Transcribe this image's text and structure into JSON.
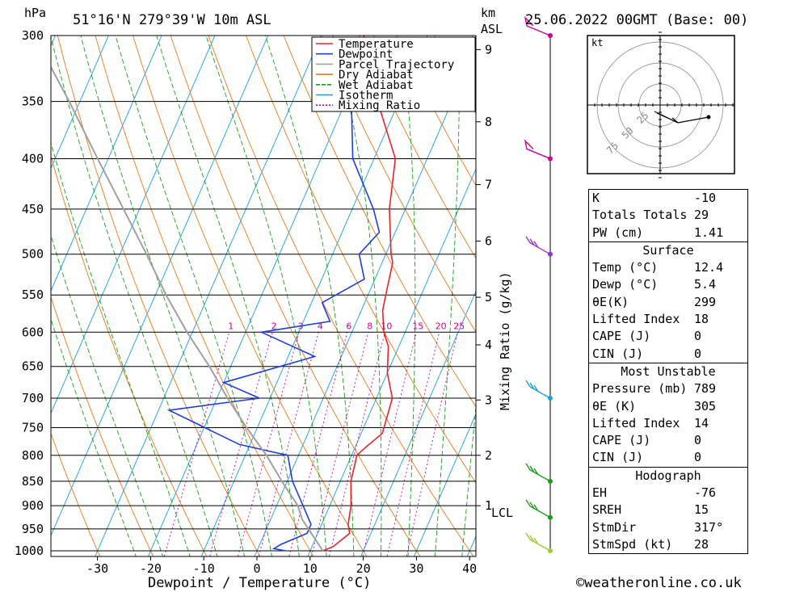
{
  "header": {
    "unit_left": "hPa",
    "location": "51°16'N  279°39'W  10m  ASL",
    "unit_right_top": "km",
    "unit_right_bottom": "ASL",
    "datetime": "25.06.2022  00GMT  (Base: 00)"
  },
  "footer": {
    "xlabel": "Dewpoint / Temperature (°C)",
    "credit": "©weatheronline.co.uk",
    "mixing_label": "Mixing Ratio (g/kg)"
  },
  "legend": [
    {
      "label": "Temperature",
      "color": "#e8232a"
    },
    {
      "label": "Dewpoint",
      "color": "#1f3fd6"
    },
    {
      "label": "Parcel Trajectory",
      "color": "#a0a0a0"
    },
    {
      "label": "Dry Adiabat",
      "color": "#e87a1a"
    },
    {
      "label": "Wet Adiabat",
      "color": "#1a9e1a"
    },
    {
      "label": "Isotherm",
      "color": "#1a9ee0"
    },
    {
      "label": "Mixing Ratio",
      "color": "#cc0099"
    }
  ],
  "chart_data": {
    "type": "line",
    "x_axis": {
      "label": "Dewpoint / Temperature (°C)",
      "ticks": [
        "-30",
        "-20",
        "-10",
        "0",
        "10",
        "20",
        "30",
        "40"
      ]
    },
    "y_axis": {
      "label": "hPa",
      "scale": "log",
      "ticks": [
        "300",
        "350",
        "400",
        "450",
        "500",
        "550",
        "600",
        "650",
        "700",
        "750",
        "800",
        "850",
        "900",
        "950",
        "1000"
      ]
    },
    "km_ticks": [
      {
        "label": "9",
        "p": 310
      },
      {
        "label": "8",
        "p": 367
      },
      {
        "label": "7",
        "p": 425
      },
      {
        "label": "6",
        "p": 485
      },
      {
        "label": "5",
        "p": 553
      },
      {
        "label": "4",
        "p": 618
      },
      {
        "label": "3",
        "p": 703
      },
      {
        "label": "2",
        "p": 800
      },
      {
        "label": "1",
        "p": 900
      }
    ],
    "lcl_label": "LCL",
    "mixing_ratio_labels": [
      "1",
      "2",
      "3",
      "4",
      "6",
      "8",
      "10",
      "15",
      "20",
      "25"
    ],
    "series": [
      {
        "name": "Temperature",
        "points": [
          [
            12.4,
            1000
          ],
          [
            14,
            990
          ],
          [
            16,
            960
          ],
          [
            15,
            940
          ],
          [
            14,
            900
          ],
          [
            12,
            850
          ],
          [
            11,
            800
          ],
          [
            12,
            785
          ],
          [
            14,
            760
          ],
          [
            13,
            700
          ],
          [
            10,
            660
          ],
          [
            8,
            620
          ],
          [
            6,
            600
          ],
          [
            4,
            570
          ],
          [
            3,
            540
          ],
          [
            2,
            510
          ],
          [
            1,
            500
          ],
          [
            -3,
            450
          ],
          [
            -6,
            400
          ],
          [
            -14,
            350
          ],
          [
            -22,
            300
          ]
        ]
      },
      {
        "name": "Dewpoint",
        "points": [
          [
            5.4,
            1000
          ],
          [
            3,
            995
          ],
          [
            4,
            985
          ],
          [
            8,
            960
          ],
          [
            8,
            940
          ],
          [
            5,
            900
          ],
          [
            1,
            850
          ],
          [
            -2,
            800
          ],
          [
            -12,
            780
          ],
          [
            -28,
            720
          ],
          [
            -12,
            700
          ],
          [
            -20,
            675
          ],
          [
            -5,
            635
          ],
          [
            -17,
            600
          ],
          [
            -5,
            585
          ],
          [
            -8,
            560
          ],
          [
            -2,
            530
          ],
          [
            -5,
            500
          ],
          [
            -3,
            475
          ],
          [
            -6,
            450
          ],
          [
            -14,
            400
          ],
          [
            -20,
            340
          ],
          [
            -26,
            305
          ]
        ]
      },
      {
        "name": "Parcel Trajectory",
        "points": [
          [
            12.4,
            1000
          ],
          [
            6,
            930
          ],
          [
            4,
            900
          ],
          [
            -1,
            850
          ],
          [
            -6,
            800
          ],
          [
            -12,
            750
          ],
          [
            -18,
            700
          ],
          [
            -24,
            650
          ],
          [
            -31,
            600
          ],
          [
            -38,
            550
          ],
          [
            -45,
            500
          ],
          [
            -53,
            450
          ],
          [
            -62,
            400
          ],
          [
            -72,
            350
          ],
          [
            -84,
            300
          ]
        ]
      }
    ],
    "wind_barbs": [
      {
        "p": 300,
        "style": "pennant"
      },
      {
        "p": 400,
        "style": "pennant"
      },
      {
        "p": 500,
        "style": "barbs"
      },
      {
        "p": 700,
        "style": "barbs"
      },
      {
        "p": 850,
        "style": "barbs"
      },
      {
        "p": 925,
        "style": "barbs"
      },
      {
        "p": 1000,
        "style": "barbs"
      }
    ]
  },
  "hodograph": {
    "unit": "kt",
    "rings": [
      "25",
      "50",
      "75"
    ]
  },
  "indices": {
    "general": [
      {
        "label": "K",
        "value": "-10"
      },
      {
        "label": "Totals Totals",
        "value": "29"
      },
      {
        "label": "PW (cm)",
        "value": "1.41"
      }
    ],
    "surface": {
      "title": "Surface",
      "rows": [
        {
          "label": "Temp (°C)",
          "value": "12.4"
        },
        {
          "label": "Dewp (°C)",
          "value": "5.4"
        },
        {
          "label": "θE(K)",
          "value": "299"
        },
        {
          "label": "Lifted Index",
          "value": "18"
        },
        {
          "label": "CAPE (J)",
          "value": "0"
        },
        {
          "label": "CIN (J)",
          "value": "0"
        }
      ]
    },
    "most_unstable": {
      "title": "Most Unstable",
      "rows": [
        {
          "label": "Pressure (mb)",
          "value": "789"
        },
        {
          "label": "θE (K)",
          "value": "305"
        },
        {
          "label": "Lifted Index",
          "value": "14"
        },
        {
          "label": "CAPE (J)",
          "value": "0"
        },
        {
          "label": "CIN (J)",
          "value": "0"
        }
      ]
    },
    "hodograph": {
      "title": "Hodograph",
      "rows": [
        {
          "label": "EH",
          "value": "-76"
        },
        {
          "label": "SREH",
          "value": "15"
        },
        {
          "label": "StmDir",
          "value": "317°"
        },
        {
          "label": "StmSpd (kt)",
          "value": "28"
        }
      ]
    }
  }
}
